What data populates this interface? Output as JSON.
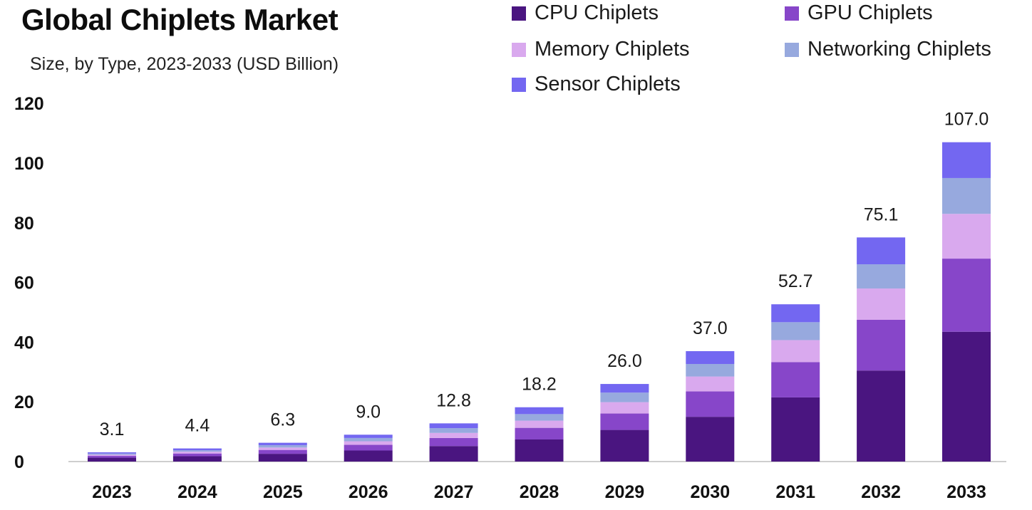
{
  "chart_data": {
    "type": "bar",
    "stacked": true,
    "title": "Global Chiplets Market",
    "subtitle": "Size, by Type, 2023-2033 (USD Billion)",
    "xlabel": "",
    "ylabel": "",
    "ylim": [
      0,
      120
    ],
    "yticks": [
      0,
      20,
      40,
      60,
      80,
      100,
      120
    ],
    "grid": false,
    "legend_position": "top-right",
    "categories": [
      "2023",
      "2024",
      "2025",
      "2026",
      "2027",
      "2028",
      "2029",
      "2030",
      "2031",
      "2032",
      "2033"
    ],
    "totals": [
      3.1,
      4.4,
      6.3,
      9.0,
      12.8,
      18.2,
      26.0,
      37.0,
      52.7,
      75.1,
      107.0
    ],
    "total_labels": [
      "3.1",
      "4.4",
      "6.3",
      "9.0",
      "12.8",
      "18.2",
      "26.0",
      "37.0",
      "52.7",
      "75.1",
      "107.0"
    ],
    "series": [
      {
        "name": "CPU Chiplets",
        "color": "#4a1580",
        "values": [
          1.3,
          1.8,
          2.6,
          3.7,
          5.2,
          7.4,
          10.6,
          15.0,
          21.5,
          30.5,
          43.5
        ]
      },
      {
        "name": "GPU Chiplets",
        "color": "#8746c9",
        "values": [
          0.6,
          0.9,
          1.3,
          1.9,
          2.7,
          3.9,
          5.5,
          8.5,
          11.8,
          17.0,
          24.5
        ]
      },
      {
        "name": "Memory Chiplets",
        "color": "#d9a9ee",
        "values": [
          0.4,
          0.6,
          0.8,
          1.2,
          1.7,
          2.4,
          3.8,
          5.0,
          7.4,
          10.5,
          15.0
        ]
      },
      {
        "name": "Networking Chiplets",
        "color": "#97a9de",
        "values": [
          0.4,
          0.5,
          0.8,
          1.1,
          1.6,
          2.2,
          3.2,
          4.2,
          6.0,
          8.1,
          12.0
        ]
      },
      {
        "name": "Sensor Chiplets",
        "color": "#7367f1",
        "values": [
          0.4,
          0.6,
          0.8,
          1.1,
          1.6,
          2.3,
          2.9,
          4.3,
          6.0,
          9.0,
          12.0
        ]
      }
    ]
  }
}
